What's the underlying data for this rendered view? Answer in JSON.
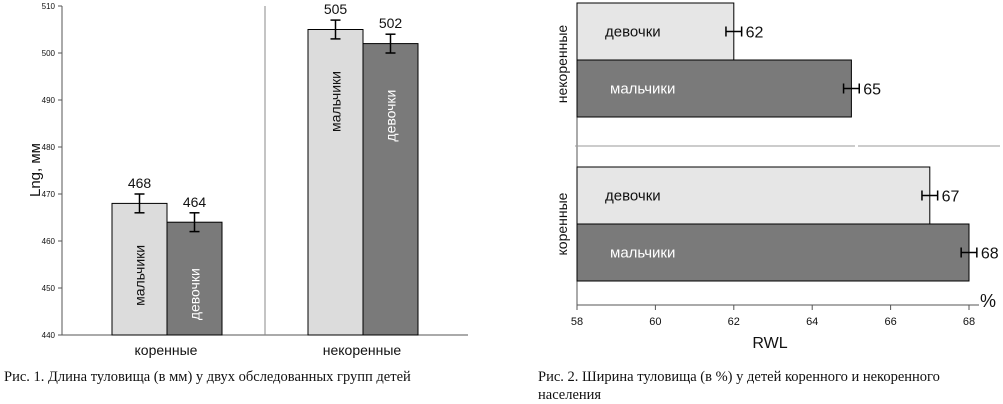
{
  "chart_data": [
    {
      "type": "bar",
      "orientation": "vertical",
      "ylabel": "Lng, мм",
      "ylim": [
        440,
        510
      ],
      "yticks": [
        440,
        450,
        460,
        470,
        480,
        490,
        500,
        510
      ],
      "groups": [
        {
          "label": "коренные",
          "bars": [
            {
              "name": "мальчики",
              "value": 468,
              "label": "468",
              "error": 2,
              "color": "#dcdcdc"
            },
            {
              "name": "девочки",
              "value": 464,
              "label": "464",
              "error": 2,
              "color": "#7a7a7a"
            }
          ]
        },
        {
          "label": "некоренные",
          "bars": [
            {
              "name": "мальчики",
              "value": 505,
              "label": "505",
              "error": 2,
              "color": "#dcdcdc"
            },
            {
              "name": "девочки",
              "value": 502,
              "label": "502",
              "error": 2,
              "color": "#7a7a7a"
            }
          ]
        }
      ]
    },
    {
      "type": "bar",
      "orientation": "horizontal",
      "xlabel": "RWL",
      "unit": "%",
      "xlim": [
        58,
        68
      ],
      "xticks": [
        58,
        60,
        62,
        64,
        66,
        68
      ],
      "groups": [
        {
          "label": "некоренные",
          "bars": [
            {
              "name": "девочки",
              "value": 62,
              "label": "62",
              "error": 0.2,
              "color": "#e6e6e6"
            },
            {
              "name": "мальчики",
              "value": 65,
              "label": "65",
              "error": 0.2,
              "color": "#7a7a7a"
            }
          ]
        },
        {
          "label": "коренные",
          "bars": [
            {
              "name": "девочки",
              "value": 67,
              "label": "67",
              "error": 0.2,
              "color": "#e6e6e6"
            },
            {
              "name": "мальчики",
              "value": 68,
              "label": "68",
              "error": 0.2,
              "color": "#7a7a7a"
            }
          ]
        }
      ]
    }
  ],
  "captions": {
    "fig1": "Рис. 1. Длина туловища (в мм) у двух обследованных групп детей",
    "fig2": "Рис. 2. Ширина туловища (в %) у детей коренного и некоренного населения"
  }
}
